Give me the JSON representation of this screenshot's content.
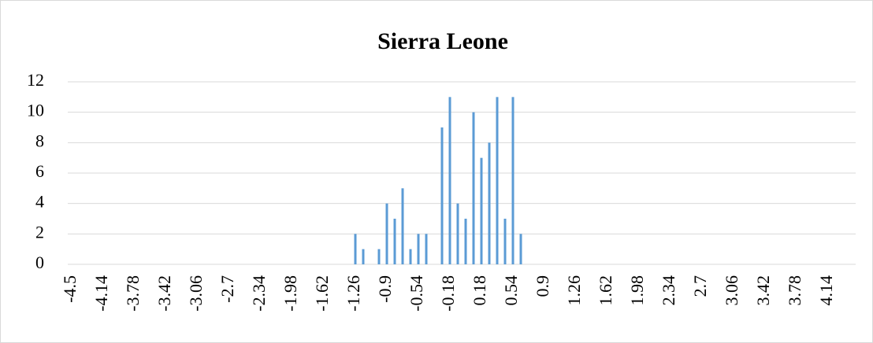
{
  "chart_data": {
    "type": "bar",
    "title": "Sierra Leone",
    "categories": [
      "-4.5",
      null,
      null,
      null,
      "-4.14",
      null,
      null,
      null,
      "-3.78",
      null,
      null,
      null,
      "-3.42",
      null,
      null,
      null,
      "-3.06",
      null,
      null,
      null,
      "-2.7",
      null,
      null,
      null,
      "-2.34",
      null,
      null,
      null,
      "-1.98",
      null,
      null,
      null,
      "-1.62",
      null,
      null,
      null,
      "-1.26",
      null,
      null,
      null,
      "-0.9",
      null,
      null,
      null,
      "-0.54",
      null,
      null,
      null,
      "-0.18",
      null,
      null,
      null,
      "0.18",
      null,
      null,
      null,
      "0.54",
      null,
      null,
      null,
      "0.9",
      null,
      null,
      null,
      "1.26",
      null,
      null,
      null,
      "1.62",
      null,
      null,
      null,
      "1.98",
      null,
      null,
      null,
      "2.34",
      null,
      null,
      null,
      "2.7",
      null,
      null,
      null,
      "3.06",
      null,
      null,
      null,
      "3.42",
      null,
      null,
      null,
      "3.78",
      null,
      null,
      null,
      "4.14",
      null,
      null,
      null
    ],
    "values": [
      0,
      0,
      0,
      0,
      0,
      0,
      0,
      0,
      0,
      0,
      0,
      0,
      0,
      0,
      0,
      0,
      0,
      0,
      0,
      0,
      0,
      0,
      0,
      0,
      0,
      0,
      0,
      0,
      0,
      0,
      0,
      0,
      0,
      0,
      0,
      0,
      2,
      1,
      0,
      1,
      4,
      3,
      5,
      1,
      2,
      2,
      0,
      9,
      11,
      4,
      3,
      10,
      7,
      8,
      11,
      3,
      11,
      2,
      0,
      0,
      0,
      0,
      0,
      0,
      0,
      0,
      0,
      0,
      0,
      0,
      0,
      0,
      0,
      0,
      0,
      0,
      0,
      0,
      0,
      0,
      0,
      0,
      0,
      0,
      0,
      0,
      0,
      0,
      0,
      0,
      0,
      0,
      0,
      0,
      0,
      0,
      0,
      0,
      0,
      0
    ],
    "color": "#5b9bd5",
    "ylim": [
      0,
      12
    ],
    "yticks": [
      0,
      2,
      4,
      6,
      8,
      10,
      12
    ],
    "grid": true
  }
}
